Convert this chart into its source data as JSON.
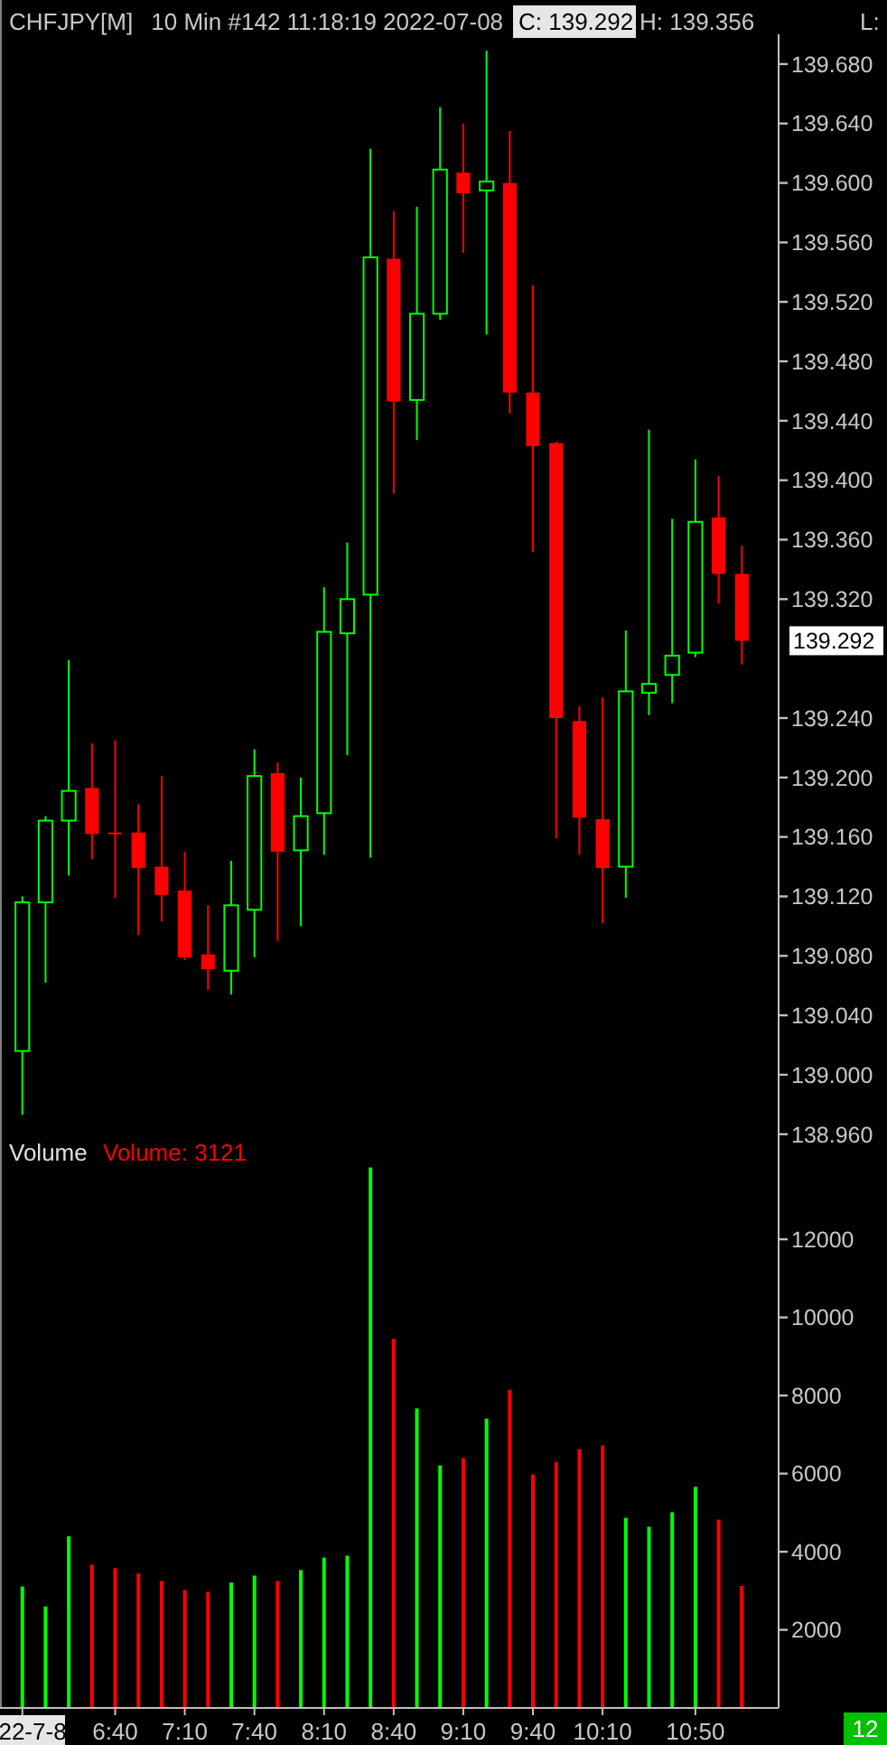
{
  "chart_data": [
    {
      "type": "candlestick",
      "title": "CHFJPY[M]",
      "subtitle": "10 Min   #142 11:18:19 2022-07-08",
      "annotations": [
        "C: 139.292",
        "H: 139.356",
        "L:",
        "139.292"
      ],
      "categories": [
        null,
        null,
        null,
        null,
        null,
        null,
        null,
        null,
        null,
        null,
        null,
        null,
        null,
        null,
        null,
        null,
        null,
        null,
        null,
        null,
        null,
        null,
        null,
        null,
        null,
        null,
        null,
        null,
        null,
        null,
        null,
        null
      ],
      "ohlc": [
        [
          139.016,
          139.12,
          138.973,
          139.116
        ],
        [
          139.116,
          139.174,
          139.062,
          139.171
        ],
        [
          139.171,
          139.279,
          139.134,
          139.191
        ],
        [
          139.193,
          139.223,
          139.145,
          139.162
        ],
        [
          139.163,
          139.225,
          139.119,
          139.162
        ],
        [
          139.163,
          139.182,
          139.094,
          139.139
        ],
        [
          139.14,
          139.201,
          139.103,
          139.121
        ],
        [
          139.124,
          139.15,
          139.077,
          139.079
        ],
        [
          139.081,
          139.114,
          139.057,
          139.071
        ],
        [
          139.07,
          139.144,
          139.054,
          139.114
        ],
        [
          139.111,
          139.219,
          139.079,
          139.201
        ],
        [
          139.203,
          139.21,
          139.09,
          139.15
        ],
        [
          139.151,
          139.2,
          139.1,
          139.174
        ],
        [
          139.176,
          139.328,
          139.148,
          139.298
        ],
        [
          139.297,
          139.358,
          139.215,
          139.32
        ],
        [
          139.323,
          139.623,
          139.146,
          139.55
        ],
        [
          139.549,
          139.581,
          139.391,
          139.453
        ],
        [
          139.454,
          139.584,
          139.427,
          139.512
        ],
        [
          139.512,
          139.651,
          139.508,
          139.609
        ],
        [
          139.607,
          139.64,
          139.553,
          139.593
        ],
        [
          139.595,
          139.689,
          139.498,
          139.601
        ],
        [
          139.6,
          139.635,
          139.445,
          139.459
        ],
        [
          139.459,
          139.531,
          139.352,
          139.423
        ],
        [
          139.425,
          139.426,
          139.159,
          139.24
        ],
        [
          139.238,
          139.248,
          139.148,
          139.173
        ],
        [
          139.172,
          139.254,
          139.102,
          139.139
        ],
        [
          139.14,
          139.299,
          139.119,
          139.258
        ],
        [
          139.257,
          139.434,
          139.242,
          139.263
        ],
        [
          139.269,
          139.374,
          139.25,
          139.282
        ],
        [
          139.284,
          139.414,
          139.281,
          139.372
        ],
        [
          139.375,
          139.403,
          139.317,
          139.337
        ],
        [
          139.337,
          139.356,
          139.276,
          139.292
        ]
      ],
      "colors": [
        "#00ff00",
        "#00ff00",
        "#00ff00",
        "#ff0000",
        "#ff0000",
        "#ff0000",
        "#ff0000",
        "#ff0000",
        "#ff0000",
        "#00ff00",
        "#00ff00",
        "#ff0000",
        "#00ff00",
        "#00ff00",
        "#00ff00",
        "#00ff00",
        "#ff0000",
        "#00ff00",
        "#00ff00",
        "#ff0000",
        "#00ff00",
        "#ff0000",
        "#ff0000",
        "#ff0000",
        "#ff0000",
        "#ff0000",
        "#00ff00",
        "#00ff00",
        "#00ff00",
        "#00ff00",
        "#ff0000",
        "#ff0000"
      ],
      "ylim": [
        138.955,
        139.7
      ],
      "yticks": [
        {
          "value": 138.96,
          "label": "138.960"
        },
        {
          "value": 139.0,
          "label": "139.000"
        },
        {
          "value": 139.04,
          "label": "139.040"
        },
        {
          "value": 139.08,
          "label": "139.080"
        },
        {
          "value": 139.12,
          "label": "139.120"
        },
        {
          "value": 139.16,
          "label": "139.160"
        },
        {
          "value": 139.2,
          "label": "139.200"
        },
        {
          "value": 139.24,
          "label": "139.240"
        },
        {
          "value": 139.32,
          "label": "139.320"
        },
        {
          "value": 139.36,
          "label": "139.360"
        },
        {
          "value": 139.4,
          "label": "139.400"
        },
        {
          "value": 139.44,
          "label": "139.440"
        },
        {
          "value": 139.48,
          "label": "139.480"
        },
        {
          "value": 139.52,
          "label": "139.520"
        },
        {
          "value": 139.56,
          "label": "139.560"
        },
        {
          "value": 139.6,
          "label": "139.600"
        },
        {
          "value": 139.64,
          "label": "139.640"
        },
        {
          "value": 139.68,
          "label": "139.680"
        }
      ],
      "tick_labels": "y"
    },
    {
      "type": "bar",
      "title": "Volume",
      "annotations": [
        "Volume: 3121",
        "12"
      ],
      "categories": [
        "22-7-8",
        null,
        null,
        null,
        "6:40",
        null,
        null,
        "7:10",
        null,
        null,
        "7:40",
        null,
        null,
        "8:10",
        null,
        null,
        "8:40",
        null,
        null,
        "9:10",
        null,
        null,
        "9:40",
        null,
        null,
        "10:10",
        null,
        null,
        null,
        "10:50",
        null,
        null
      ],
      "values": [
        3110,
        2600,
        4400,
        3670,
        3580,
        3440,
        3250,
        3020,
        2970,
        3210,
        3390,
        3250,
        3530,
        3850,
        3900,
        13840,
        9450,
        7670,
        6210,
        6400,
        7410,
        8150,
        5980,
        6300,
        6630,
        6720,
        4870,
        4640,
        5010,
        5660,
        4820,
        3121
      ],
      "colors": [
        "#00ff00",
        "#00ff00",
        "#00ff00",
        "#ff0000",
        "#ff0000",
        "#ff0000",
        "#ff0000",
        "#ff0000",
        "#ff0000",
        "#00ff00",
        "#00ff00",
        "#ff0000",
        "#00ff00",
        "#00ff00",
        "#00ff00",
        "#00ff00",
        "#ff0000",
        "#00ff00",
        "#00ff00",
        "#ff0000",
        "#00ff00",
        "#ff0000",
        "#ff0000",
        "#ff0000",
        "#ff0000",
        "#ff0000",
        "#00ff00",
        "#00ff00",
        "#00ff00",
        "#00ff00",
        "#ff0000",
        "#ff0000"
      ],
      "ylim": [
        0,
        14500
      ],
      "yticks": [
        2000,
        4000,
        6000,
        8000,
        10000,
        12000
      ]
    }
  ]
}
